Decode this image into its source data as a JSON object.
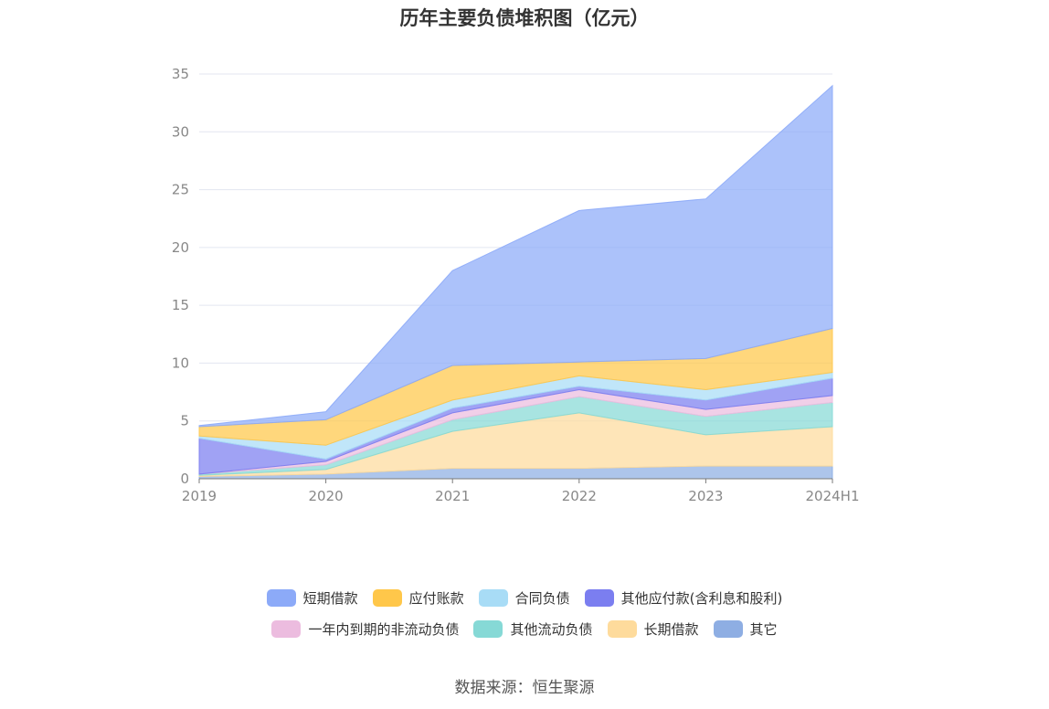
{
  "title": "历年主要负债堆积图（亿元）",
  "source": "数据来源：恒生聚源",
  "colors": [
    "#8caaf8",
    "#ffc74a",
    "#a8dcf6",
    "#7b7ef0",
    "#ecbcdf",
    "#86d9d6",
    "#fedb9c",
    "#8eaee3"
  ],
  "chart_data": {
    "type": "area",
    "stacked": true,
    "categories": [
      "2019",
      "2020",
      "2021",
      "2022",
      "2023",
      "2024H1"
    ],
    "ylim": [
      0,
      35
    ],
    "yticks": [
      "0",
      "5",
      "10",
      "15",
      "20",
      "25",
      "30",
      "35"
    ],
    "grid": true,
    "legend_position": "bottom",
    "series": [
      {
        "name": "短期借款",
        "values": [
          0.1,
          0.7,
          8.2,
          13.1,
          13.8,
          21.0
        ]
      },
      {
        "name": "应付账款",
        "values": [
          0.8,
          2.2,
          3.0,
          1.2,
          2.7,
          3.8
        ]
      },
      {
        "name": "合同负债",
        "values": [
          0.2,
          1.2,
          0.7,
          0.9,
          0.9,
          0.5
        ]
      },
      {
        "name": "其他应付款(含利息和股利)",
        "values": [
          3.1,
          0.2,
          0.4,
          0.3,
          0.8,
          1.5
        ]
      },
      {
        "name": "一年内到期的非流动负债",
        "values": [
          0.0,
          0.3,
          0.6,
          0.6,
          0.6,
          0.6
        ]
      },
      {
        "name": "其他流动负债",
        "values": [
          0.1,
          0.4,
          1.0,
          1.4,
          1.6,
          2.1
        ]
      },
      {
        "name": "长期借款",
        "values": [
          0.1,
          0.4,
          3.2,
          4.8,
          2.7,
          3.4
        ]
      },
      {
        "name": "其它",
        "values": [
          0.2,
          0.4,
          0.9,
          0.9,
          1.1,
          1.1
        ]
      }
    ]
  }
}
